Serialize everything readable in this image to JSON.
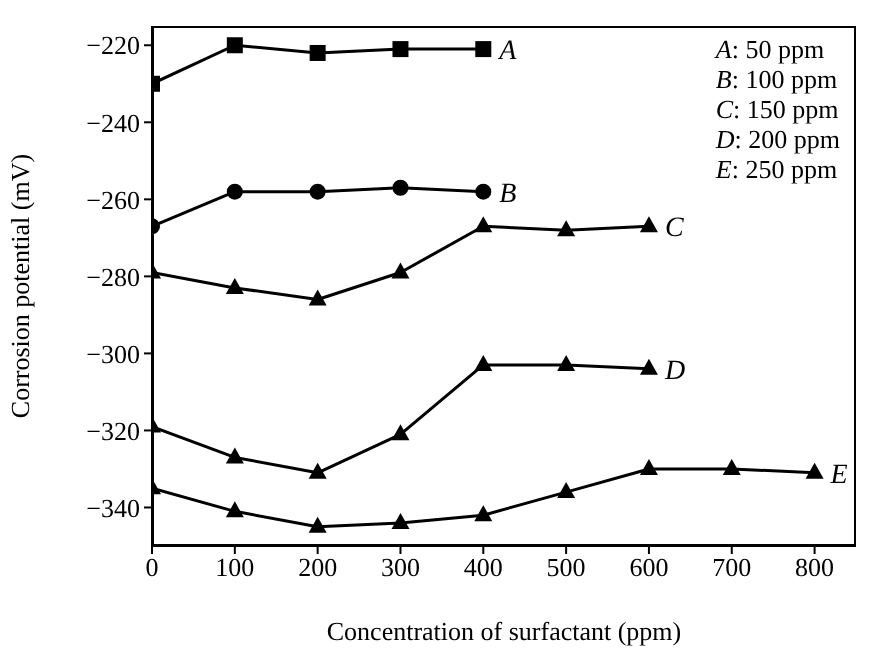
{
  "chart_data": {
    "type": "line",
    "xlabel": "Concentration of surfactant (ppm)",
    "ylabel": "Corrosion potential (mV)",
    "xlim": [
      0,
      850
    ],
    "xticks": [
      0,
      100,
      200,
      300,
      400,
      500,
      600,
      700,
      800
    ],
    "ylim": [
      -350,
      -215
    ],
    "yticks": [
      -340,
      -320,
      -300,
      -280,
      -260,
      -240,
      -220
    ],
    "grid": false,
    "legend": false,
    "annotations": [
      "A: 50 ppm",
      "B: 100 ppm",
      "C: 150 ppm",
      "D: 200 ppm",
      "E: 250 ppm"
    ],
    "series": [
      {
        "name": "A",
        "color": "#000000",
        "marker": "square",
        "x": [
          0,
          100,
          200,
          300,
          400
        ],
        "values": [
          -230,
          -220,
          -222,
          -221,
          -221
        ]
      },
      {
        "name": "B",
        "color": "#000000",
        "marker": "circle",
        "x": [
          0,
          100,
          200,
          300,
          400
        ],
        "values": [
          -267,
          -258,
          -258,
          -257,
          -258
        ]
      },
      {
        "name": "C",
        "color": "#000000",
        "marker": "triangle",
        "x": [
          0,
          100,
          200,
          300,
          400,
          500,
          600
        ],
        "values": [
          -279,
          -283,
          -286,
          -279,
          -267,
          -268,
          -267
        ]
      },
      {
        "name": "D",
        "color": "#000000",
        "marker": "triangle",
        "x": [
          0,
          100,
          200,
          300,
          400,
          500,
          600
        ],
        "values": [
          -319,
          -327,
          -331,
          -321,
          -303,
          -303,
          -304
        ]
      },
      {
        "name": "E",
        "color": "#000000",
        "marker": "triangle",
        "x": [
          0,
          100,
          200,
          300,
          400,
          500,
          600,
          700,
          800
        ],
        "values": [
          -335,
          -341,
          -345,
          -344,
          -342,
          -336,
          -330,
          -330,
          -331
        ]
      }
    ]
  }
}
